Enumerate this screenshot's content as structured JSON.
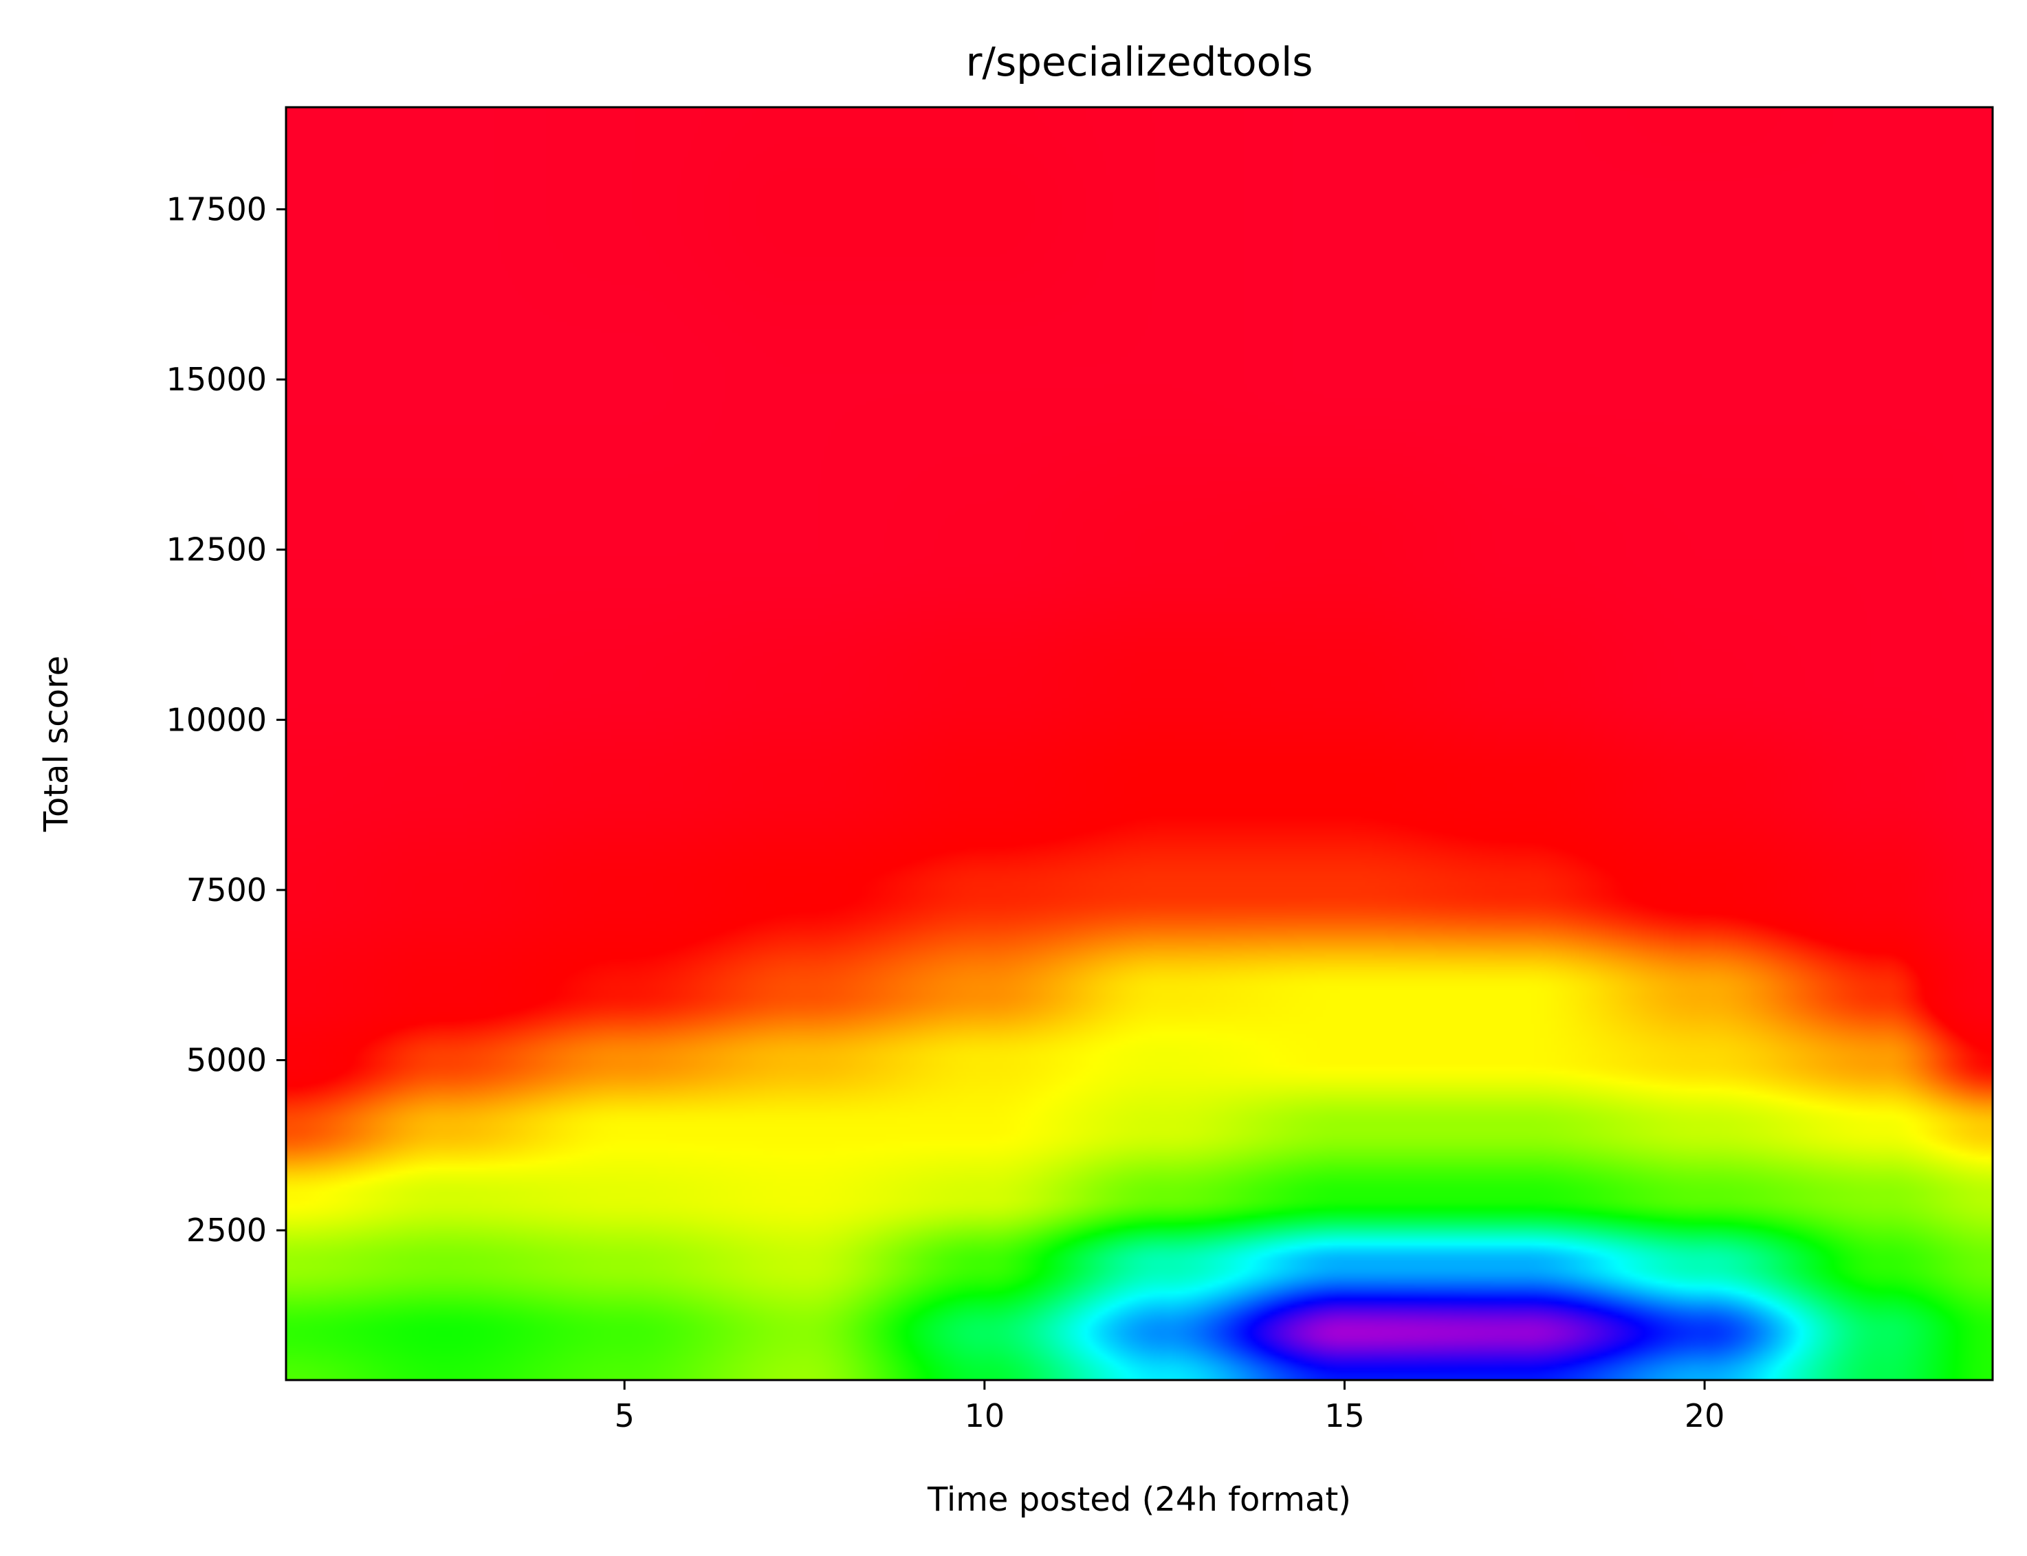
{
  "chart_data": {
    "type": "heatmap",
    "title": "r/specializedtools",
    "xlabel": "Time posted (24h format)",
    "ylabel": "Total score",
    "xlim": [
      0.3,
      24.0
    ],
    "ylim": [
      300,
      19000
    ],
    "x_ticks": [
      5,
      10,
      15,
      20
    ],
    "x_tick_labels": [
      "5",
      "10",
      "15",
      "20"
    ],
    "y_ticks": [
      2500,
      5000,
      7500,
      10000,
      12500,
      15000,
      17500
    ],
    "y_tick_labels": [
      "2500",
      "5000",
      "7500",
      "10000",
      "12500",
      "15000",
      "17500"
    ],
    "colormap": "gist_rainbow",
    "colormap_stops": [
      "#ff0029",
      "#ff0000",
      "#ffff00",
      "#00ff00",
      "#00ffff",
      "#0000ff",
      "#ff00bf"
    ],
    "grid": false,
    "legend": "none",
    "field_sample_grid": {
      "x": [
        0.3,
        2.5,
        5,
        7.5,
        10,
        12.5,
        15,
        17.5,
        20,
        22.5,
        24
      ],
      "y": [
        300,
        1000,
        2000,
        3000,
        4000,
        5000,
        6000,
        7500,
        9000,
        10500,
        12500,
        15000,
        17500,
        19000
      ],
      "level": [
        [
          0.45,
          0.48,
          0.45,
          0.4,
          0.53,
          0.68,
          0.82,
          0.82,
          0.72,
          0.55,
          0.48
        ],
        [
          0.47,
          0.49,
          0.46,
          0.41,
          0.56,
          0.74,
          0.94,
          0.93,
          0.8,
          0.56,
          0.48
        ],
        [
          0.4,
          0.42,
          0.4,
          0.37,
          0.46,
          0.62,
          0.72,
          0.72,
          0.62,
          0.47,
          0.43
        ],
        [
          0.33,
          0.36,
          0.35,
          0.34,
          0.36,
          0.43,
          0.48,
          0.48,
          0.44,
          0.41,
          0.38
        ],
        [
          0.22,
          0.29,
          0.33,
          0.33,
          0.33,
          0.36,
          0.4,
          0.4,
          0.37,
          0.34,
          0.3
        ],
        [
          0.14,
          0.21,
          0.26,
          0.29,
          0.32,
          0.34,
          0.33,
          0.33,
          0.31,
          0.27,
          0.17
        ],
        [
          0.1,
          0.14,
          0.18,
          0.22,
          0.26,
          0.32,
          0.33,
          0.33,
          0.28,
          0.2,
          0.09
        ],
        [
          0.06,
          0.09,
          0.13,
          0.16,
          0.19,
          0.2,
          0.2,
          0.19,
          0.15,
          0.1,
          0.04
        ],
        [
          0.04,
          0.05,
          0.07,
          0.09,
          0.13,
          0.16,
          0.16,
          0.14,
          0.09,
          0.04,
          0.01
        ],
        [
          0.02,
          0.02,
          0.03,
          0.05,
          0.08,
          0.11,
          0.1,
          0.06,
          0.02,
          0.01,
          0.01
        ],
        [
          0.01,
          0.01,
          0.01,
          0.01,
          0.02,
          0.04,
          0.05,
          0.02,
          0.01,
          0.01,
          0.0
        ],
        [
          0.0,
          0.0,
          0.0,
          0.01,
          0.01,
          0.01,
          0.0,
          0.0,
          0.0,
          0.0,
          0.0
        ],
        [
          0.0,
          0.0,
          0.01,
          0.03,
          0.03,
          0.01,
          0.0,
          0.0,
          0.0,
          0.0,
          0.0
        ],
        [
          0.0,
          0.0,
          0.01,
          0.02,
          0.02,
          0.01,
          0.0,
          0.0,
          0.01,
          0.0,
          0.0
        ]
      ]
    }
  }
}
